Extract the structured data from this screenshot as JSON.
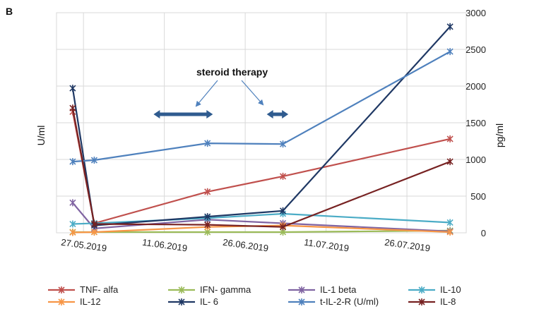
{
  "chart_data": {
    "type": "line",
    "panel_label": "B",
    "annotation": "steroid therapy",
    "ylabel_left": "U/ml",
    "ylabel_right": "pg/ml",
    "y_right_lim": [
      0,
      3000
    ],
    "y_right_ticks": [
      "0",
      "500",
      "1000",
      "1500",
      "2000",
      "2500",
      "3000"
    ],
    "x_range": [
      "2019-05-22",
      "2019-08-06"
    ],
    "x_ticks": [
      {
        "date": "2019-05-27",
        "label": "27.05.2019"
      },
      {
        "date": "2019-06-11",
        "label": "11.06.2019"
      },
      {
        "date": "2019-06-26",
        "label": "26.06.2019"
      },
      {
        "date": "2019-07-11",
        "label": "11.07.2019"
      },
      {
        "date": "2019-07-26",
        "label": "26.07.2019"
      }
    ],
    "therapy_periods": [
      {
        "start": "2019-06-09",
        "end": "2019-06-20"
      },
      {
        "start": "2019-06-30",
        "end": "2019-07-04"
      }
    ],
    "grid": true,
    "legend_position": "bottom",
    "series": [
      {
        "name": "TNF- alfa",
        "color": "#c0504d",
        "points": [
          [
            "2019-05-25",
            1650
          ],
          [
            "2019-05-29",
            130
          ],
          [
            "2019-06-19",
            560
          ],
          [
            "2019-07-03",
            770
          ],
          [
            "2019-08-03",
            1280
          ]
        ]
      },
      {
        "name": "IFN- gamma",
        "color": "#9bbb59",
        "points": [
          [
            "2019-05-25",
            10
          ],
          [
            "2019-05-29",
            10
          ],
          [
            "2019-06-19",
            10
          ],
          [
            "2019-07-03",
            10
          ],
          [
            "2019-08-03",
            30
          ]
        ]
      },
      {
        "name": "IL-1 beta",
        "color": "#8064a2",
        "points": [
          [
            "2019-05-25",
            410
          ],
          [
            "2019-05-29",
            60
          ],
          [
            "2019-06-19",
            180
          ],
          [
            "2019-07-03",
            130
          ],
          [
            "2019-08-03",
            20
          ]
        ]
      },
      {
        "name": "IL-10",
        "color": "#4bacc6",
        "points": [
          [
            "2019-05-25",
            120
          ],
          [
            "2019-05-29",
            130
          ],
          [
            "2019-06-19",
            200
          ],
          [
            "2019-07-03",
            260
          ],
          [
            "2019-08-03",
            140
          ]
        ]
      },
      {
        "name": "IL-12",
        "color": "#f79646",
        "points": [
          [
            "2019-05-25",
            5
          ],
          [
            "2019-05-29",
            10
          ],
          [
            "2019-06-19",
            80
          ],
          [
            "2019-07-03",
            100
          ],
          [
            "2019-08-03",
            10
          ]
        ]
      },
      {
        "name": "IL- 6",
        "color": "#1f3864",
        "points": [
          [
            "2019-05-25",
            1970
          ],
          [
            "2019-05-29",
            100
          ],
          [
            "2019-06-19",
            220
          ],
          [
            "2019-07-03",
            300
          ],
          [
            "2019-08-03",
            2810
          ]
        ]
      },
      {
        "name": "t-IL-2-R (U/ml)",
        "color": "#4f81bd",
        "points": [
          [
            "2019-05-25",
            970
          ],
          [
            "2019-05-29",
            990
          ],
          [
            "2019-06-19",
            1220
          ],
          [
            "2019-07-03",
            1210
          ],
          [
            "2019-08-03",
            2470
          ]
        ]
      },
      {
        "name": "IL-8",
        "color": "#772222",
        "points": [
          [
            "2019-05-25",
            1700
          ],
          [
            "2019-05-29",
            120
          ],
          [
            "2019-06-19",
            110
          ],
          [
            "2019-07-03",
            80
          ],
          [
            "2019-08-03",
            970
          ]
        ]
      }
    ]
  }
}
